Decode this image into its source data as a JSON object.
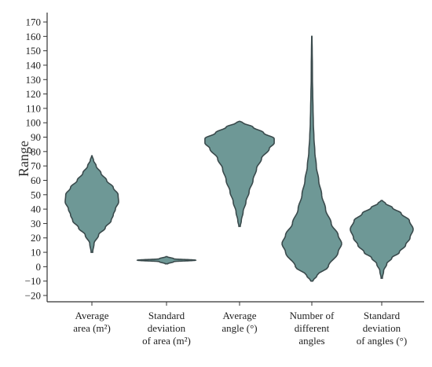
{
  "chart_data": {
    "type": "violin",
    "ylabel": "Range",
    "xlabel": "",
    "ylim": [
      -20,
      170
    ],
    "yticks": [
      -20,
      -10,
      0,
      10,
      20,
      30,
      40,
      50,
      60,
      70,
      80,
      90,
      100,
      110,
      120,
      130,
      140,
      150,
      160,
      170
    ],
    "categories": [
      [
        "Average",
        "area (m²)"
      ],
      [
        "Standard",
        "deviation",
        "of area (m²)"
      ],
      [
        "Average",
        "angle (°)"
      ],
      [
        "Number of",
        "different",
        "angles"
      ],
      [
        "Standard",
        "deviation",
        "of angles (°)"
      ]
    ],
    "fill_color": "#6e9896",
    "edge_color": "#3a4a4c",
    "violins": [
      {
        "min": 10,
        "max": 77,
        "profile": [
          [
            10,
            0.03
          ],
          [
            16,
            0.08
          ],
          [
            22,
            0.25
          ],
          [
            27,
            0.5
          ],
          [
            32,
            0.72
          ],
          [
            36,
            0.8
          ],
          [
            40,
            0.88
          ],
          [
            45,
            1.0
          ],
          [
            50,
            0.98
          ],
          [
            55,
            0.8
          ],
          [
            60,
            0.55
          ],
          [
            65,
            0.34
          ],
          [
            70,
            0.16
          ],
          [
            74,
            0.06
          ],
          [
            77,
            0.01
          ]
        ]
      },
      {
        "min": 2,
        "max": 7,
        "profile": [
          [
            2,
            0.04
          ],
          [
            3.5,
            0.25
          ],
          [
            4.5,
            1.0
          ],
          [
            5.5,
            0.25
          ],
          [
            7,
            0.02
          ]
        ]
      },
      {
        "min": 28,
        "max": 101,
        "profile": [
          [
            28,
            0.02
          ],
          [
            32,
            0.05
          ],
          [
            38,
            0.1
          ],
          [
            45,
            0.18
          ],
          [
            52,
            0.27
          ],
          [
            60,
            0.38
          ],
          [
            68,
            0.48
          ],
          [
            75,
            0.62
          ],
          [
            82,
            0.84
          ],
          [
            86,
            0.98
          ],
          [
            89,
            0.98
          ],
          [
            93,
            0.68
          ],
          [
            97,
            0.38
          ],
          [
            100,
            0.1
          ],
          [
            101,
            0.01
          ]
        ]
      },
      {
        "min": -10,
        "max": 160,
        "profile": [
          [
            -10,
            0.03
          ],
          [
            -6,
            0.18
          ],
          [
            0,
            0.55
          ],
          [
            10,
            0.88
          ],
          [
            16,
            1.0
          ],
          [
            22,
            0.88
          ],
          [
            30,
            0.65
          ],
          [
            40,
            0.46
          ],
          [
            50,
            0.33
          ],
          [
            60,
            0.23
          ],
          [
            70,
            0.15
          ],
          [
            80,
            0.1
          ],
          [
            90,
            0.07
          ],
          [
            100,
            0.05
          ],
          [
            110,
            0.04
          ],
          [
            120,
            0.03
          ],
          [
            130,
            0.02
          ],
          [
            140,
            0.018
          ],
          [
            150,
            0.012
          ],
          [
            160,
            0.005
          ]
        ]
      },
      {
        "min": -8,
        "max": 46,
        "profile": [
          [
            -8,
            0.02
          ],
          [
            -3,
            0.06
          ],
          [
            2,
            0.16
          ],
          [
            6,
            0.32
          ],
          [
            10,
            0.56
          ],
          [
            15,
            0.76
          ],
          [
            20,
            0.9
          ],
          [
            26,
            1.0
          ],
          [
            32,
            0.88
          ],
          [
            37,
            0.62
          ],
          [
            41,
            0.34
          ],
          [
            44,
            0.12
          ],
          [
            46,
            0.02
          ]
        ]
      }
    ]
  }
}
